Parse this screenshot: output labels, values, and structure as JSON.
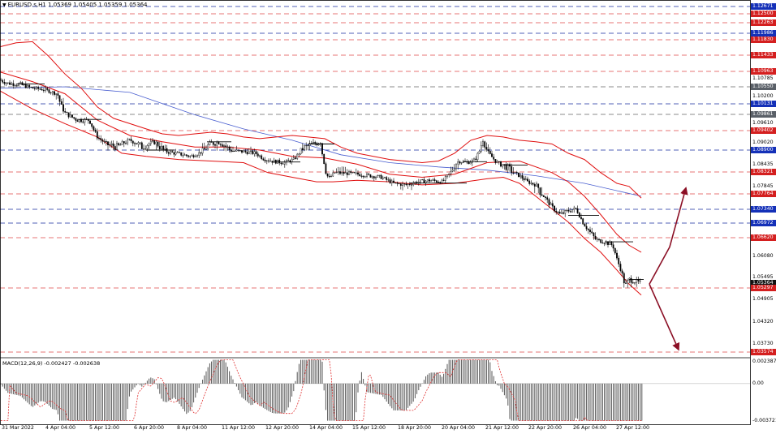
{
  "header": {
    "symbol_line": "EURUSD.s,H1  1.05369 1.05405 1.05359 1.05364",
    "macd_line": "MACD(12,26,9) -0.002427 -0.002638"
  },
  "colors": {
    "candle": "#000000",
    "bollinger": "#e01010",
    "moving_average": "#4a5fd0",
    "support_line": "#e04848",
    "resistance_line": "#1a2fa0",
    "macd_hist": "#555555",
    "macd_signal": "#e03030",
    "arrow": "#8b0f25"
  },
  "icons": [
    "dropdown-triangle-icon"
  ],
  "chart_data": {
    "type": "candlestick",
    "symbol": "EURUSD.s",
    "timeframe": "H1",
    "ohlc_last": {
      "open": 1.05369,
      "high": 1.05405,
      "low": 1.05359,
      "close": 1.05364
    },
    "ylim": [
      1.0347,
      1.27
    ],
    "price_tick_labels": [
      {
        "value": "1.12671",
        "style": "blue"
      },
      {
        "value": "1.12500",
        "style": "red"
      },
      {
        "value": "1.12263",
        "style": "red"
      },
      {
        "value": "1.11986",
        "style": "blue"
      },
      {
        "value": "1.11830",
        "style": "red"
      },
      {
        "value": "1.11433",
        "style": "red"
      },
      {
        "value": "1.10963",
        "style": "red"
      },
      {
        "value": "1.10785",
        "style": "plain"
      },
      {
        "value": "1.10550",
        "style": "gray"
      },
      {
        "value": "1.10200",
        "style": "plain"
      },
      {
        "value": "1.10131",
        "style": "blue"
      },
      {
        "value": "1.09861",
        "style": "gray"
      },
      {
        "value": "1.09610",
        "style": "plain"
      },
      {
        "value": "1.09402",
        "style": "red"
      },
      {
        "value": "1.09020",
        "style": "plain"
      },
      {
        "value": "1.08900",
        "style": "blue"
      },
      {
        "value": "1.08435",
        "style": "plain"
      },
      {
        "value": "1.08321",
        "style": "red"
      },
      {
        "value": "1.07845",
        "style": "plain"
      },
      {
        "value": "1.07764",
        "style": "red"
      },
      {
        "value": "1.07340",
        "style": "blue"
      },
      {
        "value": "1.06972",
        "style": "blue"
      },
      {
        "value": "1.06620",
        "style": "red"
      },
      {
        "value": "1.06080",
        "style": "plain"
      },
      {
        "value": "1.05495",
        "style": "plain"
      },
      {
        "value": "1.05364",
        "style": "black"
      },
      {
        "value": "1.05297",
        "style": "red"
      },
      {
        "value": "1.04905",
        "style": "plain"
      },
      {
        "value": "1.04320",
        "style": "plain"
      },
      {
        "value": "1.03730",
        "style": "plain"
      },
      {
        "value": "1.03574",
        "style": "red"
      }
    ],
    "support_levels": [
      1.125,
      1.12263,
      1.1183,
      1.11433,
      1.10963,
      1.09402,
      1.08321,
      1.07764,
      1.0662,
      1.05297,
      1.03574
    ],
    "resistance_levels": [
      1.12671,
      1.11986,
      1.10131,
      1.089,
      1.0734,
      1.06972
    ],
    "gray_levels": [
      1.1055,
      1.09861
    ],
    "time_labels": [
      "31 Mar 2022",
      "4 Apr 04:00",
      "5 Apr 12:00",
      "6 Apr 20:00",
      "8 Apr 04:00",
      "11 Apr 12:00",
      "12 Apr 20:00",
      "14 Apr 04:00",
      "15 Apr 12:00",
      "18 Apr 20:00",
      "20 Apr 04:00",
      "21 Apr 12:00",
      "22 Apr 20:00",
      "26 Apr 04:00",
      "27 Apr 12:00"
    ],
    "price_path": [
      [
        0,
        1.1075
      ],
      [
        10,
        1.1065
      ],
      [
        25,
        1.1062
      ],
      [
        40,
        1.105
      ],
      [
        55,
        1.1045
      ],
      [
        70,
        1.103
      ],
      [
        80,
        1.099
      ],
      [
        95,
        1.097
      ],
      [
        110,
        1.097
      ],
      [
        120,
        1.092
      ],
      [
        130,
        1.09
      ],
      [
        145,
        1.0895
      ],
      [
        160,
        1.091
      ],
      [
        175,
        1.0895
      ],
      [
        190,
        1.0905
      ],
      [
        205,
        1.0885
      ],
      [
        220,
        1.0878
      ],
      [
        235,
        1.087
      ],
      [
        245,
        1.088
      ],
      [
        258,
        1.09
      ],
      [
        270,
        1.0905
      ],
      [
        285,
        1.0888
      ],
      [
        300,
        1.0885
      ],
      [
        315,
        1.088
      ],
      [
        325,
        1.0862
      ],
      [
        335,
        1.0855
      ],
      [
        350,
        1.085
      ],
      [
        362,
        1.086
      ],
      [
        372,
        1.0892
      ],
      [
        385,
        1.09
      ],
      [
        395,
        1.0905
      ],
      [
        400,
        1.084
      ],
      [
        405,
        1.081
      ],
      [
        412,
        1.083
      ],
      [
        425,
        1.0828
      ],
      [
        440,
        1.0825
      ],
      [
        455,
        1.082
      ],
      [
        470,
        1.0815
      ],
      [
        485,
        1.0795
      ],
      [
        500,
        1.079
      ],
      [
        515,
        1.08
      ],
      [
        530,
        1.0805
      ],
      [
        545,
        1.08
      ],
      [
        555,
        1.083
      ],
      [
        565,
        1.0855
      ],
      [
        575,
        1.085
      ],
      [
        585,
        1.0858
      ],
      [
        595,
        1.091
      ],
      [
        602,
        1.088
      ],
      [
        612,
        1.085
      ],
      [
        625,
        1.084
      ],
      [
        640,
        1.082
      ],
      [
        650,
        1.08
      ],
      [
        660,
        1.079
      ],
      [
        670,
        1.077
      ],
      [
        680,
        1.074
      ],
      [
        690,
        1.072
      ],
      [
        700,
        1.073
      ],
      [
        710,
        1.0735
      ],
      [
        718,
        1.07
      ],
      [
        725,
        1.068
      ],
      [
        735,
        1.0655
      ],
      [
        745,
        1.065
      ],
      [
        755,
        1.064
      ],
      [
        760,
        1.06
      ],
      [
        765,
        1.057
      ],
      [
        770,
        1.053
      ],
      [
        775,
        1.0545
      ],
      [
        783,
        1.054
      ],
      [
        790,
        1.0536
      ]
    ],
    "bollinger_upper": [
      [
        0,
        1.1165
      ],
      [
        20,
        1.1175
      ],
      [
        40,
        1.1178
      ],
      [
        60,
        1.114
      ],
      [
        80,
        1.109
      ],
      [
        100,
        1.105
      ],
      [
        120,
        1.1005
      ],
      [
        140,
        1.0975
      ],
      [
        160,
        1.096
      ],
      [
        180,
        1.0945
      ],
      [
        200,
        1.093
      ],
      [
        220,
        1.0925
      ],
      [
        240,
        1.093
      ],
      [
        260,
        1.0935
      ],
      [
        280,
        1.093
      ],
      [
        300,
        1.092
      ],
      [
        320,
        1.0915
      ],
      [
        340,
        1.092
      ],
      [
        360,
        1.0925
      ],
      [
        380,
        1.092
      ],
      [
        400,
        1.0915
      ],
      [
        420,
        1.0895
      ],
      [
        440,
        1.088
      ],
      [
        460,
        1.087
      ],
      [
        480,
        1.086
      ],
      [
        500,
        1.0855
      ],
      [
        520,
        1.085
      ],
      [
        540,
        1.0855
      ],
      [
        560,
        1.088
      ],
      [
        580,
        1.091
      ],
      [
        600,
        1.0925
      ],
      [
        620,
        1.092
      ],
      [
        640,
        1.091
      ],
      [
        660,
        1.0905
      ],
      [
        680,
        1.09
      ],
      [
        700,
        1.088
      ],
      [
        720,
        1.086
      ],
      [
        740,
        1.083
      ],
      [
        760,
        1.0795
      ],
      [
        775,
        1.0785
      ],
      [
        790,
        1.0765
      ]
    ],
    "bollinger_middle": [
      [
        0,
        1.1095
      ],
      [
        40,
        1.107
      ],
      [
        80,
        1.103
      ],
      [
        120,
        1.097
      ],
      [
        160,
        1.0925
      ],
      [
        200,
        1.0905
      ],
      [
        240,
        1.0895
      ],
      [
        280,
        1.0895
      ],
      [
        320,
        1.089
      ],
      [
        360,
        1.087
      ],
      [
        400,
        1.0865
      ],
      [
        440,
        1.0845
      ],
      [
        480,
        1.0825
      ],
      [
        520,
        1.0815
      ],
      [
        560,
        1.0825
      ],
      [
        600,
        1.085
      ],
      [
        640,
        1.0855
      ],
      [
        680,
        1.083
      ],
      [
        700,
        1.08
      ],
      [
        720,
        1.077
      ],
      [
        740,
        1.072
      ],
      [
        760,
        1.067
      ],
      [
        775,
        1.064
      ],
      [
        790,
        1.062
      ]
    ],
    "bollinger_lower": [
      [
        0,
        1.104
      ],
      [
        40,
        1.1
      ],
      [
        80,
        1.096
      ],
      [
        120,
        1.092
      ],
      [
        150,
        1.088
      ],
      [
        180,
        1.087
      ],
      [
        220,
        1.086
      ],
      [
        260,
        1.0855
      ],
      [
        300,
        1.085
      ],
      [
        330,
        1.083
      ],
      [
        360,
        1.0815
      ],
      [
        390,
        1.08
      ],
      [
        410,
        1.08
      ],
      [
        440,
        1.0805
      ],
      [
        480,
        1.08
      ],
      [
        520,
        1.079
      ],
      [
        560,
        1.0795
      ],
      [
        600,
        1.081
      ],
      [
        620,
        1.0815
      ],
      [
        640,
        1.0795
      ],
      [
        660,
        1.077
      ],
      [
        680,
        1.0735
      ],
      [
        700,
        1.07
      ],
      [
        720,
        1.066
      ],
      [
        740,
        1.062
      ],
      [
        760,
        1.057
      ],
      [
        775,
        1.0535
      ],
      [
        790,
        1.0505
      ]
    ],
    "moving_average": [
      [
        0,
        1.105
      ],
      [
        80,
        1.1055
      ],
      [
        160,
        1.1035
      ],
      [
        240,
        1.0985
      ],
      [
        300,
        1.0945
      ],
      [
        360,
        1.091
      ],
      [
        420,
        1.0875
      ],
      [
        480,
        1.085
      ],
      [
        540,
        1.084
      ],
      [
        600,
        1.0835
      ],
      [
        660,
        1.082
      ],
      [
        720,
        1.0795
      ],
      [
        790,
        1.077
      ]
    ],
    "projection_up": [
      [
        800,
        1.0535
      ],
      [
        825,
        1.0635
      ],
      [
        845,
        1.0783
      ]
    ],
    "projection_down": [
      [
        800,
        1.0535
      ],
      [
        836,
        1.0362
      ]
    ],
    "macd": {
      "values": {
        "main": -0.002427,
        "signal": -0.002638
      },
      "ylim": [
        -0.003721,
        0.002387
      ],
      "tick_labels": [
        "0.002387",
        "0.00",
        "-0.003721"
      ]
    }
  }
}
